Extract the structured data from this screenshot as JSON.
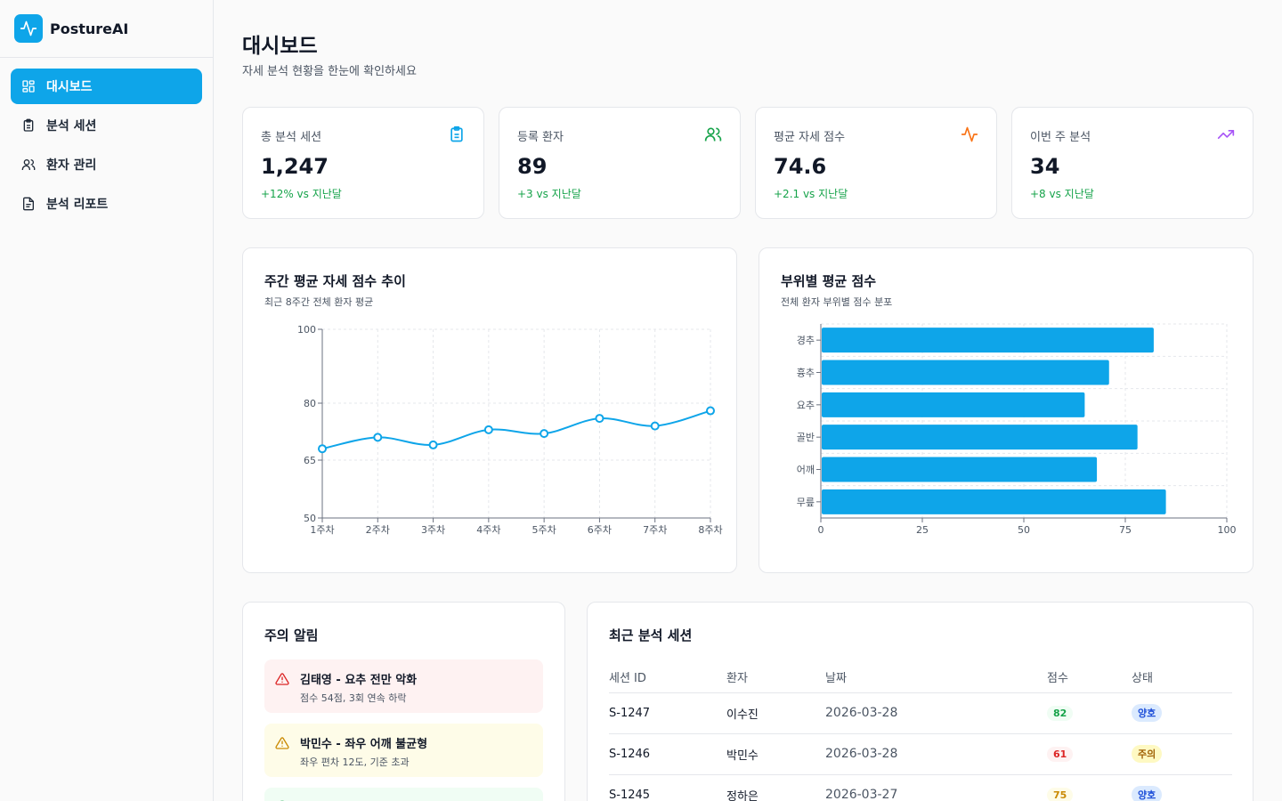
{
  "brand": {
    "name": "PostureAI"
  },
  "nav": [
    {
      "label": "대시보드",
      "icon": "dashboard-icon",
      "active": true
    },
    {
      "label": "분석 세션",
      "icon": "clipboard-icon",
      "active": false
    },
    {
      "label": "환자 관리",
      "icon": "users-icon",
      "active": false
    },
    {
      "label": "분석 리포트",
      "icon": "file-text-icon",
      "active": false
    }
  ],
  "header": {
    "title": "대시보드",
    "subtitle": "자세 분석 현황을 한눈에 확인하세요"
  },
  "stats": [
    {
      "label": "총 분석 세션",
      "value": "1,247",
      "delta": "+12% vs 지난달",
      "icon": "clipboard-icon",
      "color": "#0ea5e9"
    },
    {
      "label": "등록 환자",
      "value": "89",
      "delta": "+3 vs 지난달",
      "icon": "users-icon",
      "color": "#16a34a"
    },
    {
      "label": "평균 자세 점수",
      "value": "74.6",
      "delta": "+2.1 vs 지난달",
      "icon": "activity-icon",
      "color": "#f97316"
    },
    {
      "label": "이번 주 분석",
      "value": "34",
      "delta": "+8 vs 지난달",
      "icon": "trending-up-icon",
      "color": "#a855f7"
    }
  ],
  "line_panel": {
    "title": "주간 평균 자세 점수 추이",
    "subtitle": "최근 8주간 전체 환자 평균"
  },
  "bar_panel": {
    "title": "부위별 평균 점수",
    "subtitle": "전체 환자 부위별 점수 분포"
  },
  "chart_data": [
    {
      "type": "line",
      "categories": [
        "1주차",
        "2주차",
        "3주차",
        "4주차",
        "5주차",
        "6주차",
        "7주차",
        "8주차"
      ],
      "series": [
        {
          "values": [
            68,
            71,
            69,
            73,
            72,
            76,
            74,
            78
          ]
        }
      ],
      "yticks": [
        50,
        65,
        80,
        100
      ],
      "ylim": [
        50,
        100
      ],
      "grid": true,
      "color": "#0ea5e9"
    },
    {
      "type": "bar",
      "orientation": "horizontal",
      "categories": [
        "경추",
        "흉추",
        "요추",
        "골반",
        "어깨",
        "무릎"
      ],
      "values": [
        82,
        71,
        65,
        78,
        68,
        85
      ],
      "xticks": [
        0,
        25,
        50,
        75,
        100
      ],
      "xlim": [
        0,
        100
      ],
      "grid": true,
      "color": "#0ea5e9"
    }
  ],
  "alerts_panel": {
    "title": "주의 알림",
    "items": [
      {
        "title": "김태영 - 요추 전만 악화",
        "desc": "점수 54점, 3회 연속 하락",
        "level": "danger"
      },
      {
        "title": "박민수 - 좌우 어깨 불균형",
        "desc": "좌우 편차 12도, 기준 초과",
        "level": "warning"
      },
      {
        "title": "",
        "desc": "",
        "level": "success"
      }
    ]
  },
  "sessions_panel": {
    "title": "최근 분석 세션",
    "columns": [
      "세션 ID",
      "환자",
      "날짜",
      "점수",
      "상태"
    ],
    "rows": [
      {
        "id": "S-1247",
        "patient": "이수진",
        "date": "2026-03-28",
        "score": "82",
        "status": "양호"
      },
      {
        "id": "S-1246",
        "patient": "박민수",
        "date": "2026-03-28",
        "score": "61",
        "status": "주의"
      },
      {
        "id": "S-1245",
        "patient": "정하은",
        "date": "2026-03-27",
        "score": "75",
        "status": "양호"
      }
    ]
  }
}
